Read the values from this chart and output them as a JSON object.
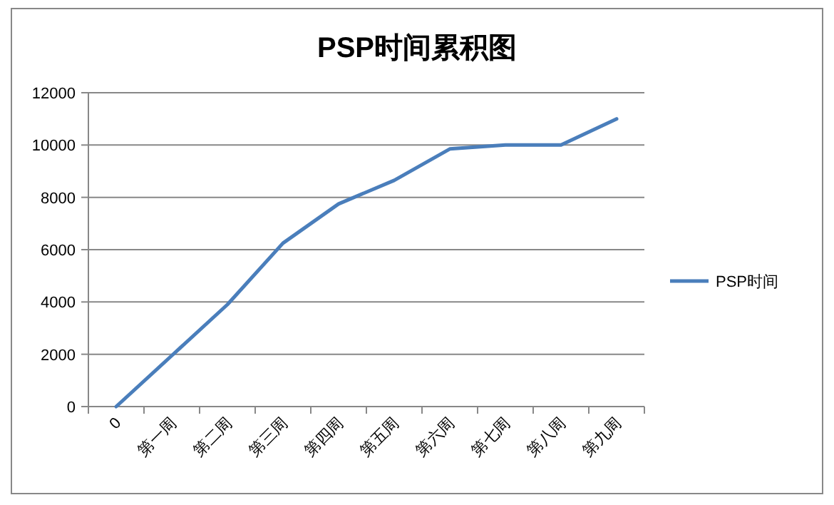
{
  "chart_data": {
    "type": "line",
    "title": "PSP时间累积图",
    "categories": [
      "0",
      "第一周",
      "第二周",
      "第三周",
      "第四周",
      "第五周",
      "第六周",
      "第七周",
      "第八周",
      "第九周"
    ],
    "series": [
      {
        "name": "PSP时间",
        "color": "#4a7ebb",
        "values": [
          0,
          1950,
          3900,
          6250,
          7750,
          8650,
          9850,
          10000,
          10000,
          11000
        ]
      }
    ],
    "ylim": [
      0,
      12000
    ],
    "yticks": [
      0,
      2000,
      4000,
      6000,
      8000,
      10000,
      12000
    ],
    "grid": "y",
    "legend": "right",
    "marker": "none",
    "line_style": "solid"
  }
}
